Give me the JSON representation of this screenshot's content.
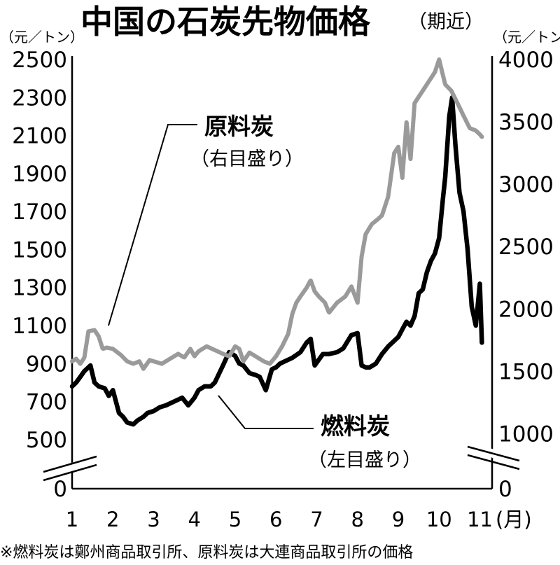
{
  "chart_data": {
    "type": "line",
    "title": "中国の石炭先物価格",
    "subtitle": "（期近）",
    "left_unit": "（元／トン）",
    "right_unit": "（元／トン）",
    "x_unit": "(月)",
    "x_ticks": [
      "1",
      "2",
      "3",
      "4",
      "5",
      "6",
      "7",
      "8",
      "9",
      "10",
      "11"
    ],
    "left_axis": {
      "ticks": [
        "2500",
        "2300",
        "2100",
        "1900",
        "1700",
        "1500",
        "1300",
        "1100",
        "900",
        "700",
        "500",
        "0"
      ],
      "range": [
        400,
        2500
      ],
      "break": true
    },
    "right_axis": {
      "ticks": [
        "4000",
        "3500",
        "3000",
        "2500",
        "2000",
        "1500",
        "1000",
        "0"
      ],
      "range": [
        800,
        4000
      ],
      "break": true
    },
    "series": [
      {
        "name": "燃料炭",
        "label_sub": "（左目盛り）",
        "axis": "left",
        "color": "#000000",
        "x": [
          1.0,
          1.1,
          1.2,
          1.3,
          1.45,
          1.55,
          1.65,
          1.8,
          1.9,
          2.0,
          2.15,
          2.25,
          2.35,
          2.5,
          2.6,
          2.75,
          2.85,
          3.0,
          3.15,
          3.3,
          3.5,
          3.7,
          3.85,
          4.0,
          4.1,
          4.25,
          4.4,
          4.5,
          4.7,
          4.85,
          5.0,
          5.1,
          5.2,
          5.35,
          5.5,
          5.6,
          5.75,
          5.9,
          6.0,
          6.1,
          6.2,
          6.4,
          6.6,
          6.75,
          6.85,
          6.95,
          7.05,
          7.15,
          7.3,
          7.5,
          7.65,
          7.85,
          8.0,
          8.1,
          8.2,
          8.3,
          8.45,
          8.6,
          8.75,
          8.9,
          9.0,
          9.1,
          9.2,
          9.3,
          9.4,
          9.5,
          9.6,
          9.7,
          9.8,
          9.9,
          10.0,
          10.1,
          10.15,
          10.25,
          10.32,
          10.4,
          10.5,
          10.6,
          10.7,
          10.8,
          10.9,
          11.0,
          11.05
        ],
        "values": [
          780,
          800,
          830,
          860,
          890,
          800,
          780,
          770,
          730,
          760,
          640,
          620,
          590,
          580,
          600,
          620,
          640,
          650,
          670,
          680,
          700,
          720,
          680,
          720,
          760,
          780,
          780,
          800,
          890,
          960,
          940,
          900,
          890,
          850,
          840,
          830,
          760,
          870,
          880,
          900,
          910,
          930,
          960,
          1010,
          1030,
          890,
          920,
          950,
          950,
          960,
          980,
          1050,
          1060,
          890,
          880,
          880,
          900,
          950,
          990,
          1020,
          1040,
          1080,
          1120,
          1100,
          1150,
          1270,
          1290,
          1380,
          1440,
          1480,
          1560,
          1780,
          1880,
          2200,
          2300,
          2050,
          1800,
          1700,
          1500,
          1200,
          1100,
          1320,
          1010
        ]
      },
      {
        "name": "原料炭",
        "label_sub": "（右目盛り）",
        "axis": "right",
        "color": "#9a9a9a",
        "x": [
          1.0,
          1.1,
          1.2,
          1.3,
          1.4,
          1.55,
          1.65,
          1.75,
          1.85,
          2.0,
          2.2,
          2.35,
          2.5,
          2.65,
          2.75,
          2.9,
          3.0,
          3.2,
          3.4,
          3.6,
          3.75,
          3.9,
          4.0,
          4.1,
          4.3,
          4.5,
          4.7,
          4.85,
          5.0,
          5.1,
          5.2,
          5.35,
          5.5,
          5.7,
          5.85,
          6.0,
          6.15,
          6.3,
          6.4,
          6.5,
          6.6,
          6.75,
          6.85,
          6.95,
          7.05,
          7.2,
          7.3,
          7.5,
          7.7,
          7.85,
          8.0,
          8.1,
          8.2,
          8.35,
          8.5,
          8.6,
          8.75,
          8.9,
          9.0,
          9.1,
          9.2,
          9.3,
          9.4,
          9.5,
          9.6,
          9.7,
          9.8,
          9.9,
          10.0,
          10.15,
          10.3,
          10.45,
          10.6,
          10.75,
          10.9,
          11.0,
          11.05
        ],
        "values": [
          1580,
          1600,
          1560,
          1610,
          1820,
          1830,
          1780,
          1680,
          1690,
          1680,
          1630,
          1580,
          1560,
          1580,
          1520,
          1590,
          1580,
          1560,
          1600,
          1640,
          1610,
          1680,
          1620,
          1660,
          1700,
          1670,
          1640,
          1620,
          1700,
          1680,
          1580,
          1650,
          1620,
          1580,
          1560,
          1620,
          1700,
          1800,
          1960,
          2050,
          2100,
          2170,
          2230,
          2140,
          2100,
          2050,
          1970,
          2050,
          2100,
          2180,
          2050,
          2420,
          2600,
          2680,
          2720,
          2750,
          2900,
          3250,
          3300,
          3050,
          3500,
          3200,
          3650,
          3700,
          3750,
          3800,
          3850,
          3900,
          4000,
          3800,
          3750,
          3650,
          3550,
          3450,
          3430,
          3400,
          3380
        ]
      }
    ],
    "annotations": [
      "原料炭",
      "（右目盛り）",
      "燃料炭",
      "（左目盛り）"
    ],
    "note": "※燃料炭は鄭州商品取引所、原料炭は大連商品取引所の価格",
    "grid": false
  }
}
